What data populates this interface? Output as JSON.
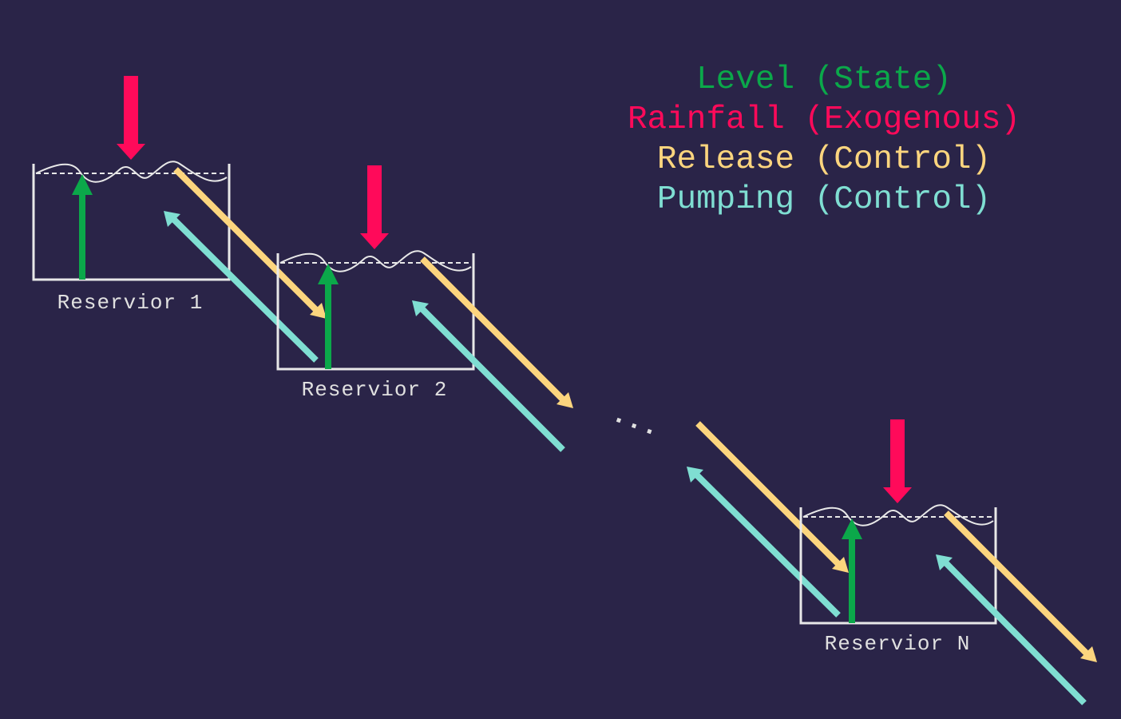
{
  "legend": {
    "items": [
      {
        "label": "Level (State)",
        "color": "#0ba84a"
      },
      {
        "label": "Rainfall (Exogenous)",
        "color": "#ff0a5a"
      },
      {
        "label": "Release (Control)",
        "color": "#fcd57e"
      },
      {
        "label": "Pumping (Control)",
        "color": "#7fded2"
      }
    ]
  },
  "reservoirs": [
    {
      "label": "Reservior 1"
    },
    {
      "label": "Reservior 2"
    },
    {
      "label": "Reservior N"
    }
  ],
  "ellipsis": "...",
  "colors": {
    "background": "#2a2448",
    "tank_outline": "#e8e8e8",
    "level": "#0ba84a",
    "rainfall": "#ff0a5a",
    "release": "#fcd57e",
    "pumping": "#7fded2"
  }
}
